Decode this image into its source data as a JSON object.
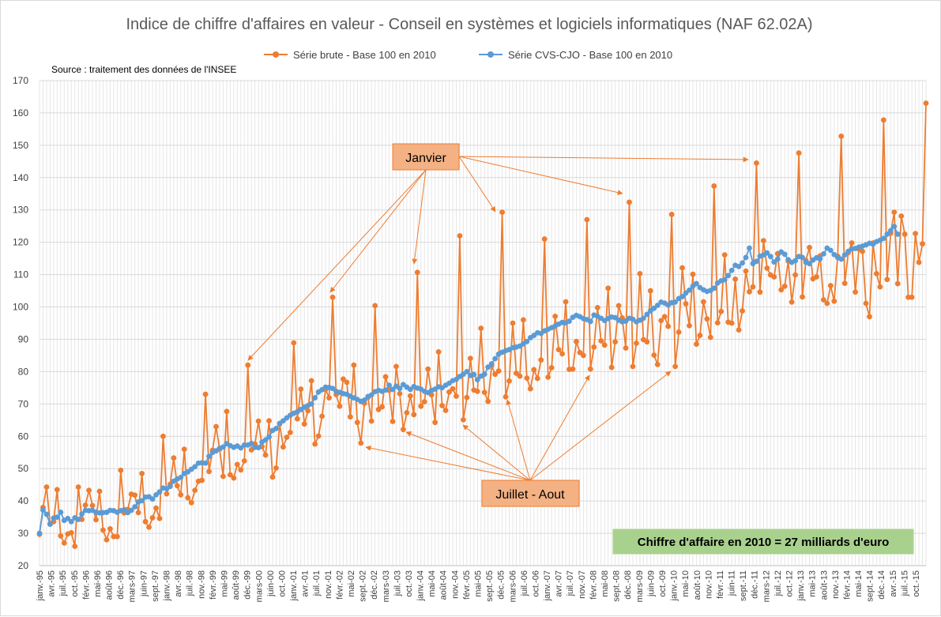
{
  "chart_data": {
    "type": "line",
    "title": "Indice de chiffre d'affaires en valeur - Conseil en systèmes et logiciels informatiques (NAF 62.02A)",
    "source_note": "Source : traitement des données de l'INSEE",
    "x_start": "1995-01",
    "ylim": [
      20,
      170
    ],
    "y_ticks": [
      20,
      30,
      40,
      50,
      60,
      70,
      80,
      90,
      100,
      110,
      120,
      130,
      140,
      150,
      160,
      170
    ],
    "x_tick_labels": [
      "janv.-95",
      "avr.-95",
      "juil.-95",
      "oct.-95",
      "févr.-96",
      "mai-96",
      "août-96",
      "déc.-96",
      "mars-97",
      "juin-97",
      "sept.-97",
      "janv.-98",
      "avr.-98",
      "juil.-98",
      "nov.-98",
      "févr.-99",
      "mai-99",
      "août-99",
      "déc.-99",
      "mars-00",
      "juin-00",
      "oct.-00",
      "janv.-01",
      "avr.-01",
      "juil.-01",
      "nov.-01",
      "févr.-02",
      "mai-02",
      "sept.-02",
      "déc.-02",
      "mars-03",
      "juil.-03",
      "oct.-03",
      "janv.-04",
      "mai-04",
      "août-04",
      "nov.-04",
      "févr.-05",
      "mai-05",
      "sept.-05",
      "déc.-05",
      "mars-06",
      "juil.-06",
      "oct.-06",
      "janv.-07",
      "avr.-07",
      "juil.-07",
      "nov.-07",
      "févr.-08",
      "mai-08",
      "sept.-08",
      "déc.-08",
      "mars-09",
      "juin-09",
      "oct.-09",
      "janv.-10",
      "mai-10",
      "août-10",
      "nov.-10",
      "févr.-11",
      "juin-11",
      "sept.-11",
      "déc.-11",
      "mars-12",
      "juil.-12",
      "oct.-12",
      "janv.-13",
      "mai-13",
      "août-13",
      "nov.-13",
      "févr.-14",
      "mai-14",
      "sept.-14",
      "déc.-14",
      "avr.-15",
      "juil.-15",
      "oct.-15"
    ],
    "grid": true,
    "legend_position": "top",
    "series": [
      {
        "name": "Série brute - Base 100 en 2010",
        "color": "#ED7D31",
        "values": [
          29.7,
          38,
          44.3,
          33,
          33.6,
          43.5,
          29.2,
          27,
          29.8,
          30.2,
          26,
          44.3,
          34.3,
          38.7,
          43.3,
          38.6,
          34.2,
          43,
          31,
          28,
          31.4,
          29,
          29,
          49.5,
          36.3,
          37.4,
          42.1,
          41.8,
          36.4,
          48.5,
          33.6,
          31.9,
          34.8,
          37.8,
          34.6,
          60,
          42.2,
          45.2,
          53.3,
          44.7,
          41.9,
          56,
          41,
          39.5,
          43.3,
          46.1,
          46.4,
          73,
          49.1,
          55.7,
          63,
          56,
          47.6,
          67.7,
          48.1,
          47.1,
          51.3,
          49.6,
          52.4,
          82,
          55.8,
          57.6,
          64.7,
          56.8,
          54.2,
          64.8,
          47.4,
          50.2,
          63.8,
          56.7,
          59.7,
          61.2,
          88.9,
          65.4,
          74.6,
          63.8,
          67.9,
          77.2,
          57.6,
          60.1,
          66.2,
          74.5,
          71.9,
          103,
          72.9,
          69.3,
          77.7,
          76.7,
          66,
          82,
          64.3,
          57.9,
          70.2,
          72,
          64.7,
          100.4,
          68.3,
          69.1,
          78.4,
          74.2,
          64.6,
          81.6,
          73.2,
          62.1,
          67.3,
          72.5,
          66.7,
          110.7,
          69.3,
          70.7,
          80.8,
          72.8,
          64.3,
          86.1,
          69.5,
          68,
          73.7,
          74.7,
          72.4,
          122,
          65.1,
          72,
          84.1,
          74.3,
          73.9,
          93.4,
          73.6,
          70.8,
          81.8,
          79.2,
          80.2,
          129.3,
          72.2,
          77.1,
          95,
          79.5,
          78.6,
          96,
          78,
          74.7,
          80.6,
          77.9,
          83.6,
          121,
          78.3,
          81.2,
          97.1,
          86.8,
          85.5,
          101.6,
          80.7,
          80.8,
          89.3,
          85.9,
          85,
          127,
          80.8,
          87.6,
          99.8,
          89.5,
          88.2,
          105.8,
          81.3,
          89.2,
          100.4,
          96.6,
          87.3,
          132.4,
          81.6,
          88.8,
          110.3,
          89.9,
          89.2,
          105,
          85.1,
          82.2,
          95.8,
          97,
          94,
          128.6,
          81.6,
          92.2,
          112.1,
          101,
          94.2,
          110.1,
          88.5,
          91.2,
          101.6,
          96.3,
          90.6,
          137.4,
          95.1,
          98.6,
          116.1,
          95.3,
          95,
          108.6,
          92.9,
          98.8,
          111.1,
          104.7,
          106.2,
          144.5,
          104.6,
          120.5,
          112,
          109.9,
          109.3,
          116.5,
          105.3,
          106.4,
          114.2,
          101.5,
          109.9,
          147.6,
          103.1,
          114.4,
          118.4,
          108.7,
          109.3,
          115.8,
          102.2,
          101.1,
          106.6,
          101.8,
          115.7,
          152.8,
          107.3,
          116.8,
          119.8,
          104.6,
          117.9,
          117.2,
          101.1,
          97,
          119.8,
          110.3,
          106.2,
          157.8,
          108.5,
          122.8,
          129.3,
          107.2,
          128.1,
          122.5,
          103,
          103,
          122.7,
          113.8,
          119.5,
          163
        ]
      },
      {
        "name": "Série CVS-CJO - Base 100 en 2010",
        "color": "#5B9BD5",
        "values": [
          30,
          37.2,
          35.9,
          32.8,
          34.7,
          35,
          36.5,
          34,
          34.6,
          33.6,
          34.8,
          34.3,
          36,
          37.1,
          37,
          37.1,
          36.5,
          36.3,
          36.4,
          36.5,
          37.1,
          37,
          36.5,
          37,
          37.3,
          36.4,
          37.1,
          38.2,
          39.7,
          40.1,
          41.2,
          41.3,
          40.6,
          41.9,
          42.8,
          44,
          43.8,
          44.5,
          46.1,
          46.8,
          47.3,
          48.5,
          49,
          49.8,
          50.6,
          51.7,
          51.8,
          51.7,
          53.8,
          55,
          55.5,
          56.3,
          56.7,
          57.7,
          57.1,
          56.6,
          57,
          56.4,
          57.3,
          57.3,
          57.8,
          56.6,
          56.5,
          58.2,
          58.9,
          59.8,
          61.8,
          62.4,
          64,
          64.8,
          65.7,
          66.5,
          67.1,
          67.6,
          68.3,
          69,
          69.5,
          70,
          71.9,
          73.7,
          74.4,
          75.2,
          75.1,
          74.8,
          73.9,
          73.6,
          73.2,
          73,
          72.4,
          71.9,
          71.4,
          70.8,
          71.2,
          72.3,
          72.8,
          73.8,
          74.2,
          73.9,
          74.3,
          75.8,
          74.5,
          75.5,
          74.8,
          76,
          75.2,
          74.5,
          75.4,
          74.9,
          74.6,
          73.9,
          73.5,
          74.2,
          74.6,
          75.3,
          75,
          75.8,
          76.4,
          77.2,
          77.6,
          78.5,
          79.2,
          80,
          78.8,
          79.1,
          77.5,
          78.6,
          79.2,
          81.4,
          82.4,
          84,
          85.4,
          86,
          86.5,
          86.8,
          87.4,
          87.6,
          87.9,
          88.6,
          89.3,
          90.5,
          91.2,
          92,
          91.8,
          92.6,
          93.1,
          93.6,
          94.1,
          94.7,
          95.2,
          95.1,
          95.6,
          96.8,
          97.4,
          97,
          96.4,
          96.1,
          95.5,
          97.5,
          97.1,
          96.5,
          95.8,
          96.4,
          96.9,
          96.7,
          95.9,
          95.4,
          95.6,
          96.5,
          96.2,
          95.4,
          95.9,
          96.5,
          97.7,
          98.8,
          99.6,
          100.5,
          101.5,
          101.2,
          100.6,
          101.3,
          101.5,
          102.6,
          103.2,
          104.3,
          105.2,
          106.4,
          107.2,
          106,
          105.3,
          104.8,
          105.1,
          105.8,
          107.4,
          108.1,
          108.4,
          109.7,
          111.3,
          112.9,
          112.5,
          113.6,
          115.3,
          118.2,
          113.4,
          114.1,
          115.7,
          116.1,
          116.7,
          115.6,
          113.9,
          114.8,
          117,
          116.3,
          114.6,
          113.8,
          114.3,
          115.6,
          115.3,
          113.8,
          113.4,
          114.5,
          115.2,
          114.9,
          116.4,
          118.2,
          117.5,
          116.2,
          115.3,
          114.8,
          116.1,
          117.2,
          117.9,
          118.1,
          118.5,
          118.8,
          119.2,
          119.7,
          119.4,
          120.2,
          120.6,
          121.2,
          122.5,
          123.6,
          124.9,
          122.5
        ]
      }
    ],
    "annotations": {
      "janvier": {
        "text": "Janvier",
        "fill": "#F4B183"
      },
      "juillet_aout": {
        "text": "Juillet - Aout",
        "fill": "#F4B183"
      },
      "ca2010": {
        "text": "Chiffre d'affaire en 2010 = 27 milliards d'euro",
        "fill": "#A9D18E"
      }
    }
  }
}
